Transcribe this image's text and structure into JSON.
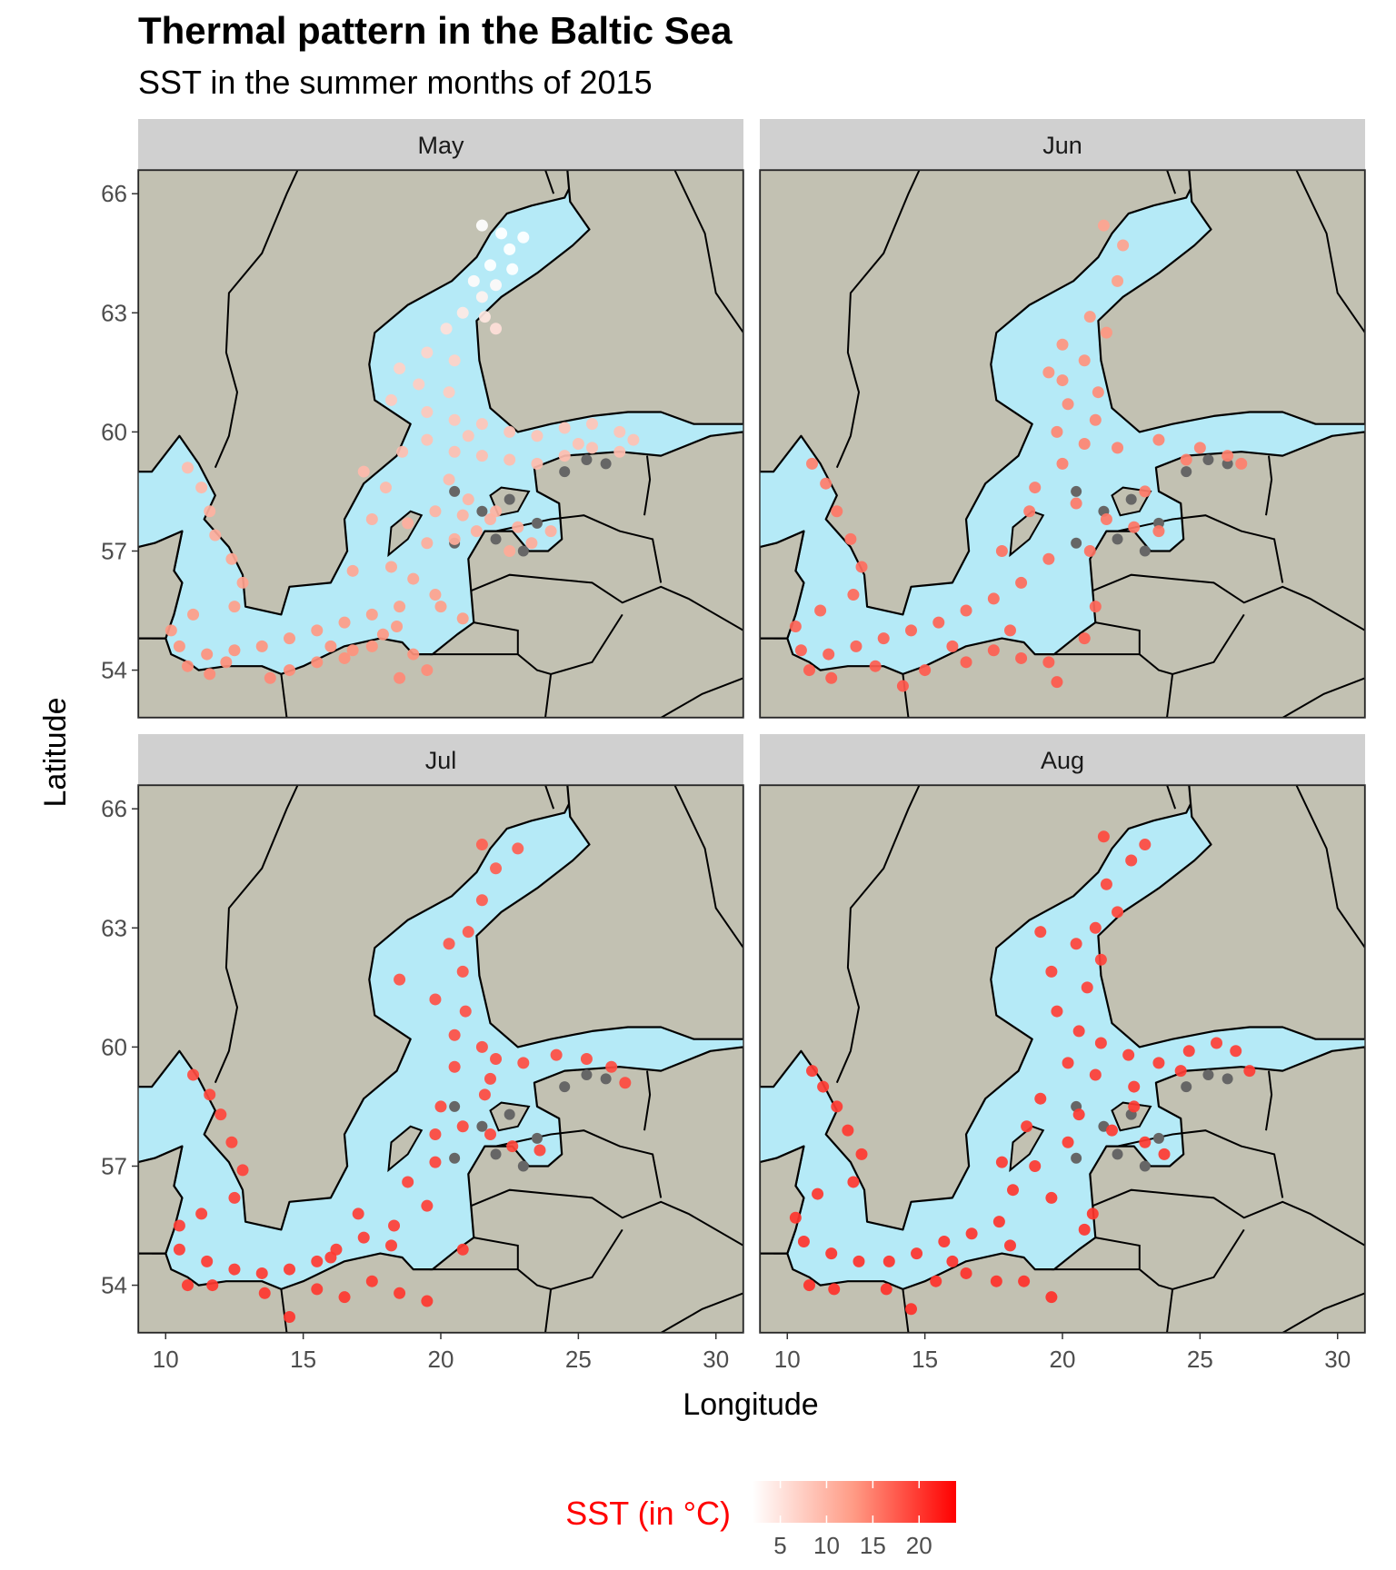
{
  "chart_data": {
    "type": "scatter",
    "title": "Thermal pattern in the Baltic Sea",
    "subtitle": "SST in the summer months of 2015",
    "xlabel": "Longitude",
    "ylabel": "Latitude",
    "xlim": [
      9,
      31
    ],
    "ylim": [
      52.8,
      66.6
    ],
    "x_ticks": [
      "10",
      "15",
      "20",
      "25",
      "30"
    ],
    "y_ticks": [
      "54",
      "57",
      "60",
      "63",
      "66"
    ],
    "facets": [
      {
        "label": "May",
        "points": [
          [
            21.5,
            65.2
          ],
          [
            22.2,
            65.0
          ],
          [
            23.0,
            64.9
          ],
          [
            22.5,
            64.6
          ],
          [
            21.8,
            64.2
          ],
          [
            22.6,
            64.1
          ],
          [
            21.2,
            63.8
          ],
          [
            22.0,
            63.7
          ],
          [
            21.5,
            63.4
          ],
          [
            20.8,
            63.0
          ],
          [
            21.6,
            62.9
          ],
          [
            20.2,
            62.6
          ],
          [
            19.5,
            62.0
          ],
          [
            20.5,
            61.8
          ],
          [
            18.5,
            61.6
          ],
          [
            19.2,
            61.2
          ],
          [
            20.3,
            61.0
          ],
          [
            18.2,
            60.8
          ],
          [
            19.5,
            60.5
          ],
          [
            20.5,
            60.3
          ],
          [
            21.5,
            60.2
          ],
          [
            22.5,
            60.0
          ],
          [
            23.5,
            59.9
          ],
          [
            24.5,
            60.1
          ],
          [
            25.5,
            60.2
          ],
          [
            26.5,
            60.0
          ],
          [
            27.0,
            59.8
          ],
          [
            19.5,
            59.8
          ],
          [
            20.5,
            59.5
          ],
          [
            21.5,
            59.4
          ],
          [
            22.5,
            59.3
          ],
          [
            23.5,
            59.2
          ],
          [
            24.5,
            59.4
          ],
          [
            25.5,
            59.6
          ],
          [
            26.5,
            59.5
          ],
          [
            20.3,
            58.8
          ],
          [
            21.0,
            58.3
          ],
          [
            21.8,
            57.8
          ],
          [
            22.8,
            57.6
          ],
          [
            23.3,
            57.2
          ],
          [
            22.5,
            57.0
          ],
          [
            20.5,
            57.3
          ],
          [
            21.3,
            57.5
          ],
          [
            19.8,
            58.0
          ],
          [
            18.8,
            57.7
          ],
          [
            19.5,
            57.2
          ],
          [
            18.2,
            56.6
          ],
          [
            19.0,
            56.3
          ],
          [
            19.8,
            55.9
          ],
          [
            18.5,
            55.6
          ],
          [
            17.5,
            55.4
          ],
          [
            16.5,
            55.2
          ],
          [
            15.5,
            55.0
          ],
          [
            14.5,
            54.8
          ],
          [
            13.5,
            54.6
          ],
          [
            12.5,
            54.5
          ],
          [
            11.5,
            54.4
          ],
          [
            10.5,
            54.6
          ],
          [
            10.2,
            55.0
          ],
          [
            11.0,
            55.4
          ],
          [
            12.5,
            55.6
          ],
          [
            12.8,
            56.2
          ],
          [
            12.4,
            56.8
          ],
          [
            11.8,
            57.4
          ],
          [
            11.6,
            58.0
          ],
          [
            11.3,
            58.6
          ],
          [
            10.8,
            59.1
          ],
          [
            17.5,
            54.6
          ],
          [
            16.5,
            54.3
          ],
          [
            15.5,
            54.2
          ],
          [
            14.5,
            54.0
          ],
          [
            13.8,
            53.8
          ],
          [
            19.0,
            54.4
          ],
          [
            19.5,
            54.0
          ],
          [
            18.5,
            53.8
          ],
          [
            16.8,
            56.5
          ],
          [
            17.5,
            57.8
          ],
          [
            18.0,
            58.6
          ],
          [
            17.2,
            59.0
          ],
          [
            18.6,
            59.5
          ],
          [
            20.8,
            57.9
          ],
          [
            10.8,
            54.1
          ],
          [
            11.6,
            53.9
          ],
          [
            12.2,
            54.2
          ],
          [
            16.0,
            54.6
          ],
          [
            16.8,
            54.5
          ],
          [
            17.9,
            54.9
          ],
          [
            18.4,
            55.1
          ],
          [
            20.0,
            55.6
          ],
          [
            20.8,
            55.3
          ],
          [
            24.0,
            57.5
          ],
          [
            22.0,
            58.0
          ],
          [
            25.0,
            59.7
          ],
          [
            21.0,
            59.9
          ],
          [
            22.0,
            62.6
          ]
        ]
      },
      {
        "label": "Jun",
        "points": [
          [
            21.5,
            65.2
          ],
          [
            22.2,
            64.7
          ],
          [
            22.0,
            63.8
          ],
          [
            21.0,
            62.9
          ],
          [
            21.6,
            62.5
          ],
          [
            20.0,
            62.2
          ],
          [
            20.8,
            61.8
          ],
          [
            19.5,
            61.5
          ],
          [
            21.3,
            61.0
          ],
          [
            20.2,
            60.7
          ],
          [
            21.2,
            60.3
          ],
          [
            19.8,
            60.0
          ],
          [
            20.8,
            59.7
          ],
          [
            22.0,
            59.6
          ],
          [
            23.5,
            59.8
          ],
          [
            25.0,
            59.6
          ],
          [
            26.0,
            59.4
          ],
          [
            26.5,
            59.2
          ],
          [
            24.5,
            59.3
          ],
          [
            20.0,
            59.2
          ],
          [
            19.0,
            58.6
          ],
          [
            20.5,
            58.2
          ],
          [
            21.6,
            57.8
          ],
          [
            22.6,
            57.6
          ],
          [
            23.5,
            57.5
          ],
          [
            21.0,
            57.0
          ],
          [
            19.5,
            56.8
          ],
          [
            18.5,
            56.2
          ],
          [
            17.5,
            55.8
          ],
          [
            16.5,
            55.5
          ],
          [
            15.5,
            55.2
          ],
          [
            14.5,
            55.0
          ],
          [
            13.5,
            54.8
          ],
          [
            12.5,
            54.6
          ],
          [
            11.5,
            54.4
          ],
          [
            10.5,
            54.5
          ],
          [
            10.3,
            55.1
          ],
          [
            11.2,
            55.5
          ],
          [
            12.4,
            55.9
          ],
          [
            12.7,
            56.6
          ],
          [
            12.3,
            57.3
          ],
          [
            11.8,
            58.0
          ],
          [
            11.4,
            58.7
          ],
          [
            10.9,
            59.2
          ],
          [
            17.5,
            54.5
          ],
          [
            18.5,
            54.3
          ],
          [
            19.5,
            54.2
          ],
          [
            19.8,
            53.7
          ],
          [
            16.5,
            54.2
          ],
          [
            15.0,
            54.0
          ],
          [
            14.2,
            53.6
          ],
          [
            13.2,
            54.1
          ],
          [
            17.8,
            57.0
          ],
          [
            18.8,
            58.0
          ],
          [
            23.0,
            58.5
          ],
          [
            20.0,
            61.3
          ],
          [
            10.8,
            54.0
          ],
          [
            11.6,
            53.8
          ],
          [
            16.0,
            54.6
          ],
          [
            18.1,
            55.0
          ],
          [
            20.8,
            54.8
          ],
          [
            21.2,
            55.6
          ]
        ]
      },
      {
        "label": "Jul",
        "points": [
          [
            21.5,
            65.1
          ],
          [
            22.8,
            65.0
          ],
          [
            22.0,
            64.5
          ],
          [
            21.5,
            63.7
          ],
          [
            21.0,
            62.9
          ],
          [
            20.3,
            62.6
          ],
          [
            20.8,
            61.9
          ],
          [
            18.5,
            61.7
          ],
          [
            19.8,
            61.2
          ],
          [
            20.9,
            60.9
          ],
          [
            20.5,
            60.3
          ],
          [
            21.5,
            60.0
          ],
          [
            22.0,
            59.7
          ],
          [
            23.0,
            59.6
          ],
          [
            24.2,
            59.8
          ],
          [
            25.3,
            59.7
          ],
          [
            26.2,
            59.5
          ],
          [
            26.7,
            59.1
          ],
          [
            20.5,
            59.5
          ],
          [
            21.8,
            59.2
          ],
          [
            20.0,
            58.5
          ],
          [
            20.8,
            58.0
          ],
          [
            21.8,
            57.8
          ],
          [
            22.6,
            57.5
          ],
          [
            23.6,
            57.4
          ],
          [
            19.8,
            57.1
          ],
          [
            18.8,
            56.6
          ],
          [
            19.5,
            56.0
          ],
          [
            18.3,
            55.5
          ],
          [
            17.2,
            55.2
          ],
          [
            16.2,
            54.9
          ],
          [
            15.5,
            54.6
          ],
          [
            14.5,
            54.4
          ],
          [
            13.5,
            54.3
          ],
          [
            12.5,
            54.4
          ],
          [
            11.5,
            54.6
          ],
          [
            10.5,
            54.9
          ],
          [
            10.5,
            55.5
          ],
          [
            11.3,
            55.8
          ],
          [
            12.5,
            56.2
          ],
          [
            12.8,
            56.9
          ],
          [
            12.4,
            57.6
          ],
          [
            12.0,
            58.3
          ],
          [
            11.6,
            58.8
          ],
          [
            11.0,
            59.3
          ],
          [
            19.5,
            53.6
          ],
          [
            18.5,
            53.8
          ],
          [
            17.5,
            54.1
          ],
          [
            16.5,
            53.7
          ],
          [
            15.5,
            53.9
          ],
          [
            14.5,
            53.2
          ],
          [
            13.6,
            53.8
          ],
          [
            17.0,
            55.8
          ],
          [
            19.8,
            57.8
          ],
          [
            21.6,
            58.8
          ],
          [
            10.8,
            54.0
          ],
          [
            11.7,
            54.0
          ],
          [
            16.0,
            54.7
          ],
          [
            18.2,
            55.0
          ],
          [
            20.8,
            54.9
          ]
        ]
      },
      {
        "label": "Aug",
        "points": [
          [
            21.5,
            65.3
          ],
          [
            23.0,
            65.1
          ],
          [
            22.5,
            64.7
          ],
          [
            21.6,
            64.1
          ],
          [
            22.0,
            63.4
          ],
          [
            21.2,
            63.0
          ],
          [
            20.5,
            62.6
          ],
          [
            21.4,
            62.2
          ],
          [
            19.6,
            61.9
          ],
          [
            20.9,
            61.5
          ],
          [
            19.8,
            60.9
          ],
          [
            20.6,
            60.4
          ],
          [
            21.4,
            60.1
          ],
          [
            22.4,
            59.8
          ],
          [
            23.5,
            59.6
          ],
          [
            24.6,
            59.9
          ],
          [
            25.6,
            60.1
          ],
          [
            26.3,
            59.9
          ],
          [
            26.8,
            59.4
          ],
          [
            20.2,
            59.6
          ],
          [
            21.2,
            59.3
          ],
          [
            22.6,
            59.0
          ],
          [
            24.3,
            59.4
          ],
          [
            19.2,
            58.7
          ],
          [
            20.6,
            58.3
          ],
          [
            21.8,
            57.9
          ],
          [
            23.0,
            57.6
          ],
          [
            23.7,
            57.3
          ],
          [
            20.2,
            57.6
          ],
          [
            19.0,
            57.0
          ],
          [
            18.2,
            56.4
          ],
          [
            19.6,
            56.2
          ],
          [
            17.7,
            55.6
          ],
          [
            16.7,
            55.3
          ],
          [
            15.7,
            55.1
          ],
          [
            14.7,
            54.8
          ],
          [
            13.7,
            54.6
          ],
          [
            12.6,
            54.6
          ],
          [
            11.6,
            54.8
          ],
          [
            10.6,
            55.1
          ],
          [
            10.3,
            55.7
          ],
          [
            11.1,
            56.3
          ],
          [
            12.4,
            56.6
          ],
          [
            12.7,
            57.3
          ],
          [
            12.2,
            57.9
          ],
          [
            11.8,
            58.5
          ],
          [
            11.3,
            59.0
          ],
          [
            10.9,
            59.4
          ],
          [
            19.6,
            53.7
          ],
          [
            18.6,
            54.1
          ],
          [
            17.6,
            54.1
          ],
          [
            16.5,
            54.3
          ],
          [
            15.4,
            54.1
          ],
          [
            14.5,
            53.4
          ],
          [
            13.6,
            53.9
          ],
          [
            20.8,
            55.4
          ],
          [
            17.8,
            57.1
          ],
          [
            18.7,
            58.0
          ],
          [
            22.6,
            58.5
          ],
          [
            19.2,
            62.9
          ],
          [
            10.8,
            54.0
          ],
          [
            11.7,
            53.9
          ],
          [
            16.0,
            54.6
          ],
          [
            18.1,
            55.0
          ],
          [
            21.1,
            55.8
          ]
        ]
      }
    ],
    "missing_points": [
      [
        20.5,
        58.5
      ],
      [
        21.5,
        58.0
      ],
      [
        22.5,
        58.3
      ],
      [
        23.5,
        57.7
      ],
      [
        22.0,
        57.3
      ],
      [
        23.0,
        57.0
      ],
      [
        20.5,
        57.2
      ],
      [
        24.5,
        59.0
      ],
      [
        25.3,
        59.3
      ],
      [
        26.0,
        59.2
      ]
    ],
    "legend": {
      "title": "SST (in °C)",
      "ticks": [
        "5",
        "10",
        "15",
        "20"
      ],
      "range": [
        2,
        24
      ],
      "low_color": "#ffffff",
      "high_color": "#ff0000"
    },
    "colors": {
      "sea": "#b5eaf7",
      "land": "#c2c1b2",
      "missing": "#666666",
      "strip": "#d0d0d0"
    }
  }
}
